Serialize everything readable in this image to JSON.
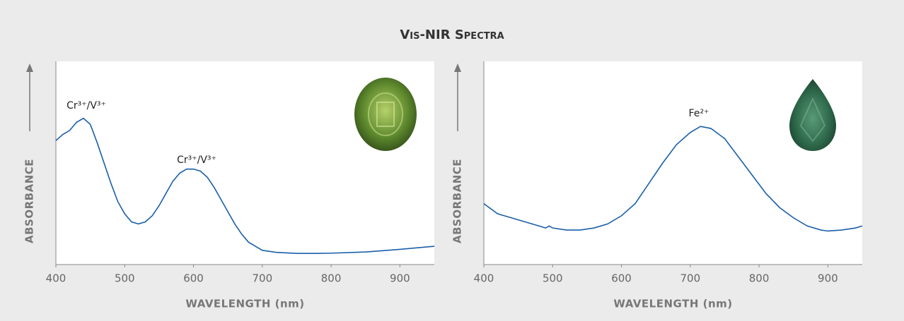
{
  "title": "Vis-NIR Spectra",
  "chart_data": [
    {
      "type": "line",
      "xlabel": "WAVELENGTH (nm)",
      "ylabel": "ABSORBANCE",
      "color": "#1a5fa8",
      "xlim": [
        400,
        950
      ],
      "xticks": [
        400,
        500,
        600,
        700,
        800,
        900
      ],
      "ylim": [
        0,
        1
      ],
      "x": [
        400,
        410,
        420,
        430,
        440,
        450,
        460,
        470,
        480,
        490,
        500,
        510,
        520,
        530,
        540,
        550,
        560,
        570,
        580,
        590,
        600,
        610,
        620,
        630,
        640,
        650,
        660,
        670,
        680,
        690,
        700,
        720,
        750,
        780,
        800,
        850,
        900,
        950
      ],
      "values": [
        0.61,
        0.64,
        0.66,
        0.7,
        0.72,
        0.69,
        0.6,
        0.5,
        0.4,
        0.31,
        0.25,
        0.21,
        0.2,
        0.21,
        0.24,
        0.29,
        0.35,
        0.41,
        0.45,
        0.47,
        0.47,
        0.46,
        0.43,
        0.38,
        0.32,
        0.26,
        0.2,
        0.15,
        0.11,
        0.09,
        0.07,
        0.06,
        0.055,
        0.055,
        0.056,
        0.062,
        0.075,
        0.09
      ],
      "annotations": [
        "Cr³⁺/V³⁺",
        "Cr³⁺/V³⁺"
      ]
    },
    {
      "type": "line",
      "xlabel": "WAVELENGTH (nm)",
      "ylabel": "ABSORBANCE",
      "color": "#1a5fa8",
      "xlim": [
        400,
        950
      ],
      "xticks": [
        400,
        500,
        600,
        700,
        800,
        900
      ],
      "ylim": [
        0,
        1
      ],
      "x": [
        400,
        420,
        440,
        460,
        480,
        490,
        495,
        500,
        520,
        540,
        560,
        580,
        600,
        620,
        640,
        660,
        680,
        700,
        715,
        730,
        750,
        770,
        790,
        810,
        830,
        850,
        870,
        890,
        900,
        920,
        940,
        950
      ],
      "values": [
        0.3,
        0.25,
        0.23,
        0.21,
        0.19,
        0.18,
        0.19,
        0.18,
        0.17,
        0.17,
        0.18,
        0.2,
        0.24,
        0.3,
        0.4,
        0.5,
        0.59,
        0.65,
        0.68,
        0.67,
        0.62,
        0.53,
        0.44,
        0.35,
        0.28,
        0.23,
        0.19,
        0.17,
        0.165,
        0.17,
        0.18,
        0.19
      ],
      "annotations": [
        "Fe²⁺"
      ]
    }
  ]
}
